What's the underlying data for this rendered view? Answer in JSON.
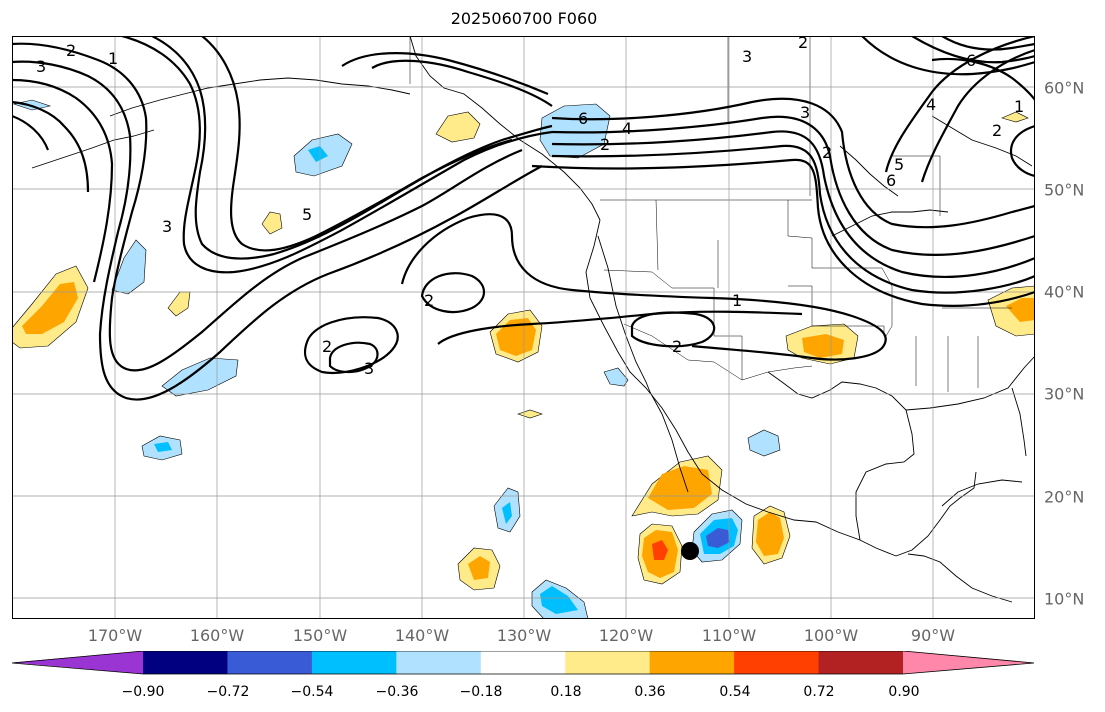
{
  "title": "2025060700 F060",
  "map": {
    "region": "North Pacific and North America",
    "lon_range": [
      -180,
      -80
    ],
    "lat_range": [
      8,
      65
    ],
    "projection": "PlateCarree",
    "gridlines": true,
    "marker": {
      "lon": -114,
      "lat": 14.5,
      "color": "#000000"
    }
  },
  "lon_labels": [
    "170°W",
    "160°W",
    "150°W",
    "140°W",
    "130°W",
    "120°W",
    "110°W",
    "100°W",
    "90°W"
  ],
  "lat_labels": [
    "60°N",
    "50°N",
    "40°N",
    "30°N",
    "20°N",
    "10°N"
  ],
  "contour_labels": [
    "2",
    "3",
    "1",
    "3",
    "3",
    "2",
    "6",
    "4",
    "2",
    "5",
    "3",
    "2",
    "2",
    "3",
    "1",
    "2",
    "6",
    "5",
    "6",
    "4",
    "1",
    "2",
    "2"
  ],
  "colorbar": {
    "extend": "both",
    "tick_labels": [
      "−0.90",
      "−0.72",
      "−0.54",
      "−0.36",
      "−0.18",
      "0.18",
      "0.36",
      "0.54",
      "0.72",
      "0.90"
    ],
    "colors": [
      "#9a35d4",
      "#000080",
      "#3a5bd6",
      "#00bfff",
      "#b0e2ff",
      "#ffffff",
      "#ffeb8a",
      "#ffa500",
      "#ff4000",
      "#b22222",
      "#ff88aa"
    ]
  },
  "fill_colors": {
    "neg1": "#b0e2ff",
    "neg2": "#00bfff",
    "neg3": "#3a5bd6",
    "pos1": "#ffeb8a",
    "pos2": "#ffa500",
    "pos3": "#ff4000"
  }
}
